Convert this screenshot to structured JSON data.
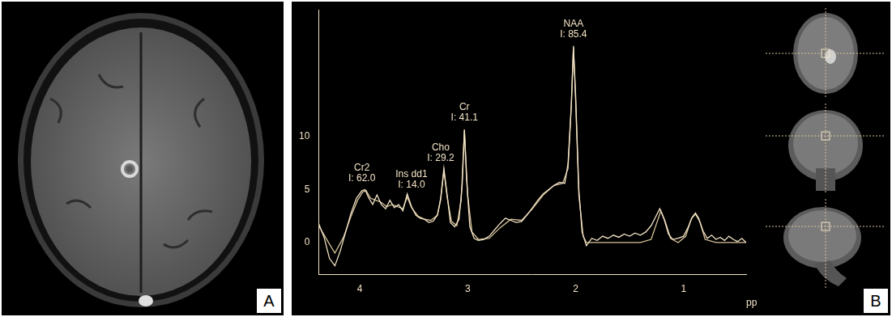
{
  "panel_labels": [
    "A",
    "B"
  ],
  "chart_data": {
    "type": "line",
    "x_label": "ppm",
    "xlim": [
      4.38,
      0.42
    ],
    "xticks": [
      4,
      3,
      2,
      1
    ],
    "ylim": [
      -3,
      22
    ],
    "yticks": [
      0,
      5,
      10
    ],
    "grid": false,
    "marker": "none",
    "line_style": "solid",
    "series": [
      {
        "color": "#f2e3c6",
        "x": [
          4.38,
          4.33,
          4.28,
          4.23,
          4.18,
          4.13,
          4.08,
          4.03,
          3.98,
          3.95,
          3.92,
          3.88,
          3.84,
          3.8,
          3.76,
          3.72,
          3.68,
          3.64,
          3.6,
          3.56,
          3.52,
          3.48,
          3.44,
          3.4,
          3.36,
          3.32,
          3.28,
          3.25,
          3.22,
          3.19,
          3.16,
          3.12,
          3.08,
          3.05,
          3.03,
          3.01,
          2.98,
          2.94,
          2.9,
          2.85,
          2.8,
          2.75,
          2.7,
          2.65,
          2.6,
          2.55,
          2.5,
          2.45,
          2.4,
          2.35,
          2.3,
          2.25,
          2.2,
          2.15,
          2.1,
          2.07,
          2.04,
          2.02,
          2.0,
          1.97,
          1.94,
          1.9,
          1.85,
          1.8,
          1.75,
          1.7,
          1.65,
          1.6,
          1.55,
          1.5,
          1.45,
          1.4,
          1.35,
          1.3,
          1.26,
          1.22,
          1.18,
          1.14,
          1.1,
          1.05,
          1.0,
          0.96,
          0.92,
          0.89,
          0.86,
          0.82,
          0.78,
          0.74,
          0.7,
          0.66,
          0.62,
          0.58,
          0.54,
          0.5,
          0.46,
          0.42
        ],
        "values": [
          1.8,
          0.5,
          -1.5,
          -2.2,
          -0.8,
          1.0,
          2.8,
          4.2,
          4.9,
          5.0,
          4.3,
          3.6,
          4.5,
          3.6,
          3.2,
          4.0,
          3.3,
          3.6,
          3.0,
          4.6,
          3.4,
          2.6,
          2.3,
          2.2,
          1.9,
          2.0,
          2.6,
          4.2,
          7.0,
          4.5,
          1.9,
          1.5,
          2.2,
          5.5,
          10.7,
          6.0,
          1.5,
          0.4,
          0.2,
          0.3,
          0.6,
          1.2,
          1.8,
          2.3,
          2.1,
          1.9,
          2.0,
          2.6,
          3.3,
          4.0,
          4.6,
          5.0,
          5.4,
          5.7,
          5.6,
          7.5,
          13.0,
          18.6,
          14.0,
          5.0,
          1.0,
          -0.3,
          0.4,
          0.2,
          0.6,
          0.4,
          0.7,
          0.5,
          0.8,
          0.6,
          0.9,
          0.7,
          1.0,
          1.6,
          2.4,
          3.2,
          2.2,
          0.8,
          0.3,
          0.4,
          0.6,
          1.4,
          2.4,
          2.8,
          2.3,
          1.1,
          0.4,
          0.7,
          0.3,
          0.5,
          0.2,
          0.6,
          0.3,
          0.1,
          0.4,
          0.0
        ]
      },
      {
        "color": "#d9c49c",
        "x": [
          4.38,
          4.3,
          4.23,
          4.15,
          4.08,
          4.02,
          3.97,
          3.94,
          3.9,
          3.85,
          3.8,
          3.75,
          3.7,
          3.65,
          3.6,
          3.56,
          3.52,
          3.46,
          3.4,
          3.34,
          3.28,
          3.25,
          3.22,
          3.19,
          3.15,
          3.1,
          3.06,
          3.03,
          3.0,
          2.96,
          2.9,
          2.8,
          2.7,
          2.6,
          2.5,
          2.4,
          2.3,
          2.2,
          2.12,
          2.07,
          2.04,
          2.02,
          2.0,
          1.97,
          1.93,
          1.9,
          1.8,
          1.6,
          1.4,
          1.3,
          1.25,
          1.21,
          1.17,
          1.12,
          1.05,
          0.98,
          0.93,
          0.89,
          0.85,
          0.8,
          0.7,
          0.6,
          0.5,
          0.42
        ],
        "values": [
          1.6,
          0.2,
          -1.0,
          0.5,
          2.5,
          4.0,
          4.8,
          4.9,
          4.2,
          4.0,
          3.8,
          3.4,
          3.6,
          3.4,
          3.2,
          4.3,
          3.3,
          2.5,
          2.2,
          2.1,
          2.6,
          4.0,
          6.8,
          4.3,
          2.0,
          1.6,
          4.0,
          10.6,
          4.5,
          1.0,
          0.3,
          0.4,
          1.4,
          2.2,
          2.1,
          3.2,
          4.5,
          5.4,
          5.6,
          7.0,
          12.8,
          18.4,
          13.5,
          4.5,
          0.6,
          0.0,
          0.0,
          0.0,
          0.0,
          0.3,
          1.8,
          3.0,
          2.0,
          0.4,
          0.0,
          0.6,
          2.2,
          2.7,
          2.0,
          0.3,
          0.0,
          0.0,
          0.0,
          0.0
        ]
      }
    ],
    "annotations": [
      {
        "text": [
          "Cr2",
          "I: 62.0"
        ],
        "x": 3.98,
        "y": 5.6
      },
      {
        "text": [
          "Ins dd1",
          "I: 14.0"
        ],
        "x": 3.52,
        "y": 5.0
      },
      {
        "text": [
          "Cho",
          "I: 29.2"
        ],
        "x": 3.25,
        "y": 7.5
      },
      {
        "text": [
          "Cr",
          "I: 41.1"
        ],
        "x": 3.03,
        "y": 11.3
      },
      {
        "text": [
          "NAA",
          "I: 85.4"
        ],
        "x": 2.02,
        "y": 19.2
      }
    ]
  }
}
